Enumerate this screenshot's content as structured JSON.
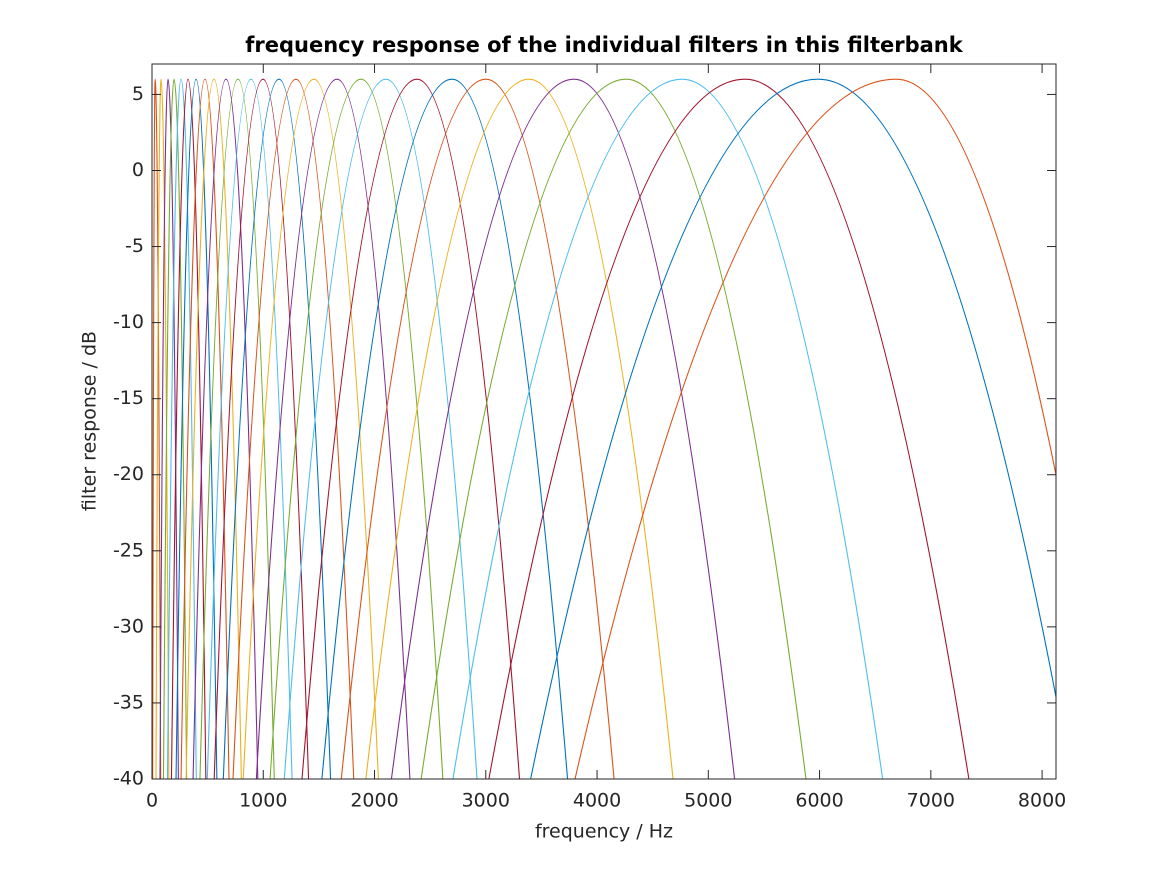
{
  "chart_data": {
    "type": "line",
    "title": "frequency response of the individual filters in this filterbank",
    "xlabel": "frequency / Hz",
    "ylabel": "filter response / dB",
    "xlim": [
      0,
      8125
    ],
    "xticks": [
      0,
      1000,
      2000,
      3000,
      4000,
      5000,
      6000,
      7000,
      8000
    ],
    "ylim": [
      -40,
      7
    ],
    "yticks": [
      -40,
      -35,
      -30,
      -25,
      -20,
      -15,
      -10,
      -5,
      0,
      5
    ],
    "series": [
      {
        "color": "#d95319",
        "x": [
          6,
          28,
          78
        ],
        "values": [
          -40,
          6,
          -40
        ]
      },
      {
        "color": "#edb120",
        "x": [
          36,
          81,
          151
        ],
        "values": [
          -40,
          6,
          -40
        ]
      },
      {
        "color": "#7e2f8e",
        "x": [
          72,
          144,
          237
        ],
        "values": [
          -40,
          6,
          -40
        ]
      },
      {
        "color": "#77ac30",
        "x": [
          103,
          198,
          311
        ],
        "values": [
          -40,
          6,
          -40
        ]
      },
      {
        "color": "#4dbeee",
        "x": [
          139,
          261,
          398
        ],
        "values": [
          -40,
          6,
          -40
        ]
      },
      {
        "color": "#a2142f",
        "x": [
          175,
          324,
          484
        ],
        "values": [
          -40,
          6,
          -40
        ]
      },
      {
        "color": "#0072bd",
        "x": [
          216,
          396,
          583
        ],
        "values": [
          -40,
          6,
          -40
        ]
      },
      {
        "color": "#d95319",
        "x": [
          261,
          476,
          692
        ],
        "values": [
          -40,
          6,
          -40
        ]
      },
      {
        "color": "#edb120",
        "x": [
          307,
          557,
          803
        ],
        "values": [
          -40,
          6,
          -40
        ]
      },
      {
        "color": "#7e2f8e",
        "x": [
          369,
          665,
          951
        ],
        "values": [
          -40,
          6,
          -40
        ]
      },
      {
        "color": "#77ac30",
        "x": [
          431,
          773,
          1099
        ],
        "values": [
          -40,
          6,
          -40
        ]
      },
      {
        "color": "#4dbeee",
        "x": [
          497,
          890,
          1259
        ],
        "values": [
          -40,
          6,
          -40
        ]
      },
      {
        "color": "#a2142f",
        "x": [
          559,
          998,
          1407
        ],
        "values": [
          -40,
          6,
          -40
        ]
      },
      {
        "color": "#0072bd",
        "x": [
          641,
          1142,
          1605
        ],
        "values": [
          -40,
          6,
          -40
        ]
      },
      {
        "color": "#d95319",
        "x": [
          728,
          1294,
          1813
        ],
        "values": [
          -40,
          6,
          -40
        ]
      },
      {
        "color": "#edb120",
        "x": [
          820,
          1456,
          2035
        ],
        "values": [
          -40,
          6,
          -40
        ]
      },
      {
        "color": "#7e2f8e",
        "x": [
          938,
          1663,
          2318
        ],
        "values": [
          -40,
          6,
          -40
        ]
      },
      {
        "color": "#77ac30",
        "x": [
          1061,
          1879,
          2614
        ],
        "values": [
          -40,
          6,
          -40
        ]
      },
      {
        "color": "#4dbeee",
        "x": [
          1189,
          2103,
          2921
        ],
        "values": [
          -40,
          6,
          -40
        ]
      },
      {
        "color": "#a2142f",
        "x": [
          1348,
          2382,
          3303
        ],
        "values": [
          -40,
          6,
          -40
        ]
      },
      {
        "color": "#0072bd",
        "x": [
          1527,
          2697,
          3735
        ],
        "values": [
          -40,
          6,
          -40
        ]
      },
      {
        "color": "#d95319",
        "x": [
          1701,
          3002,
          4153
        ],
        "values": [
          -40,
          6,
          -40
        ]
      },
      {
        "color": "#edb120",
        "x": [
          1922,
          3389,
          4683
        ],
        "values": [
          -40,
          6,
          -40
        ]
      },
      {
        "color": "#7e2f8e",
        "x": [
          2152,
          3793,
          5236
        ],
        "values": [
          -40,
          6,
          -40
        ]
      },
      {
        "color": "#77ac30",
        "x": [
          2419,
          4261,
          5878
        ],
        "values": [
          -40,
          6,
          -40
        ]
      },
      {
        "color": "#4dbeee",
        "x": [
          2705,
          4764,
          6567
        ],
        "values": [
          -40,
          6,
          -40
        ]
      },
      {
        "color": "#a2142f",
        "x": [
          3028,
          5330,
          7342
        ],
        "values": [
          -40,
          6,
          -40
        ]
      },
      {
        "color": "#0072bd",
        "x": [
          3403,
          5987,
          8125
        ],
        "values": [
          -40,
          6,
          -34.6
        ]
      },
      {
        "color": "#d95319",
        "x": [
          3802,
          6688,
          8125
        ],
        "values": [
          -40,
          6,
          -20
        ]
      }
    ]
  }
}
